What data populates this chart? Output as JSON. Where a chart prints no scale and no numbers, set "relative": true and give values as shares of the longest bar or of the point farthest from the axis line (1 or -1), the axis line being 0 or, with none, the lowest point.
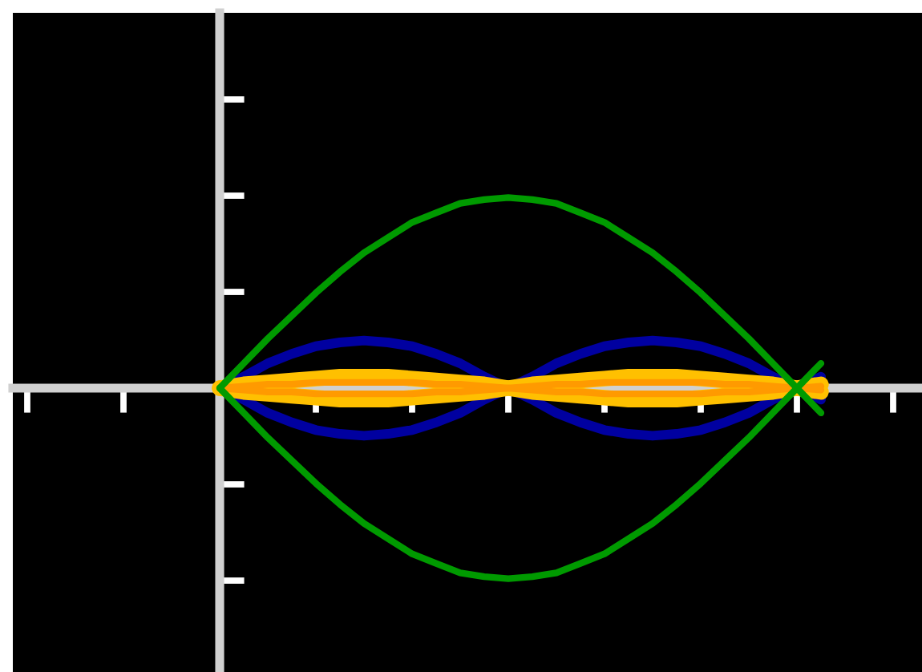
{
  "chart_data": {
    "type": "line",
    "relative": true,
    "line_style": "solid",
    "categories": [
      null,
      null,
      null,
      null,
      null,
      null,
      null,
      null,
      null,
      null,
      null,
      null,
      null,
      null,
      null,
      null,
      null,
      null,
      null,
      null,
      null,
      null,
      null,
      null,
      null,
      null
    ],
    "series": [
      {
        "color": "#0000a0",
        "values": [
          0,
          0.06,
          0.13,
          0.18,
          0.22,
          0.24,
          0.25,
          0.24,
          0.22,
          0.18,
          0.13,
          0.06,
          0,
          -0.06,
          -0.13,
          -0.18,
          -0.22,
          -0.24,
          -0.25,
          -0.24,
          -0.22,
          -0.18,
          -0.13,
          -0.06,
          0,
          0.06
        ]
      },
      {
        "color": "#0000a0",
        "values": [
          0,
          -0.06,
          -0.13,
          -0.18,
          -0.22,
          -0.24,
          -0.25,
          -0.24,
          -0.22,
          -0.18,
          -0.13,
          -0.06,
          0,
          0.06,
          0.13,
          0.18,
          0.22,
          0.24,
          0.25,
          0.24,
          0.22,
          0.18,
          0.13,
          0.06,
          0,
          -0.06
        ]
      },
      {
        "color": "#ffc000",
        "values": [
          0,
          0.02,
          0.03,
          0.04,
          0.05,
          0.06,
          0.06,
          0.06,
          0.05,
          0.04,
          0.03,
          0.02,
          0,
          -0.02,
          -0.03,
          -0.04,
          -0.05,
          -0.06,
          -0.06,
          -0.06,
          -0.05,
          -0.04,
          -0.03,
          -0.02,
          0,
          0.02
        ]
      },
      {
        "color": "#ffc000",
        "values": [
          0,
          -0.02,
          -0.03,
          -0.04,
          -0.05,
          -0.06,
          -0.06,
          -0.06,
          -0.05,
          -0.04,
          -0.03,
          -0.02,
          0,
          0.02,
          0.03,
          0.04,
          0.05,
          0.06,
          0.06,
          0.06,
          0.05,
          0.04,
          0.03,
          0.02,
          0,
          -0.02
        ]
      },
      {
        "color": "#ff9a00",
        "values": [
          0,
          0.01,
          0.02,
          0.02,
          0.03,
          0.03,
          0.03,
          0.03,
          0.03,
          0.02,
          0.02,
          0.01,
          0,
          -0.01,
          -0.02,
          -0.02,
          -0.03,
          -0.03,
          -0.03,
          -0.03,
          -0.03,
          -0.02,
          -0.02,
          -0.01,
          0,
          0.01
        ]
      },
      {
        "color": "#ff9a00",
        "values": [
          0,
          -0.01,
          -0.02,
          -0.02,
          -0.03,
          -0.03,
          -0.03,
          -0.03,
          -0.03,
          -0.02,
          -0.02,
          -0.01,
          0,
          0.01,
          0.02,
          0.02,
          0.03,
          0.03,
          0.03,
          0.03,
          0.03,
          0.02,
          0.02,
          0.01,
          0,
          -0.01
        ]
      },
      {
        "color": "#009a00",
        "values": [
          0,
          0.13,
          0.26,
          0.38,
          0.5,
          0.61,
          0.71,
          0.79,
          0.87,
          0.92,
          0.97,
          0.99,
          1,
          0.99,
          0.97,
          0.92,
          0.87,
          0.79,
          0.71,
          0.61,
          0.5,
          0.38,
          0.26,
          0.13,
          0,
          -0.13
        ]
      },
      {
        "color": "#009a00",
        "values": [
          0,
          -0.13,
          -0.26,
          -0.38,
          -0.5,
          -0.61,
          -0.71,
          -0.79,
          -0.87,
          -0.92,
          -0.97,
          -0.99,
          -1,
          -0.99,
          -0.97,
          -0.92,
          -0.87,
          -0.79,
          -0.71,
          -0.61,
          -0.5,
          -0.38,
          -0.26,
          -0.13,
          0,
          0.13
        ]
      }
    ]
  }
}
